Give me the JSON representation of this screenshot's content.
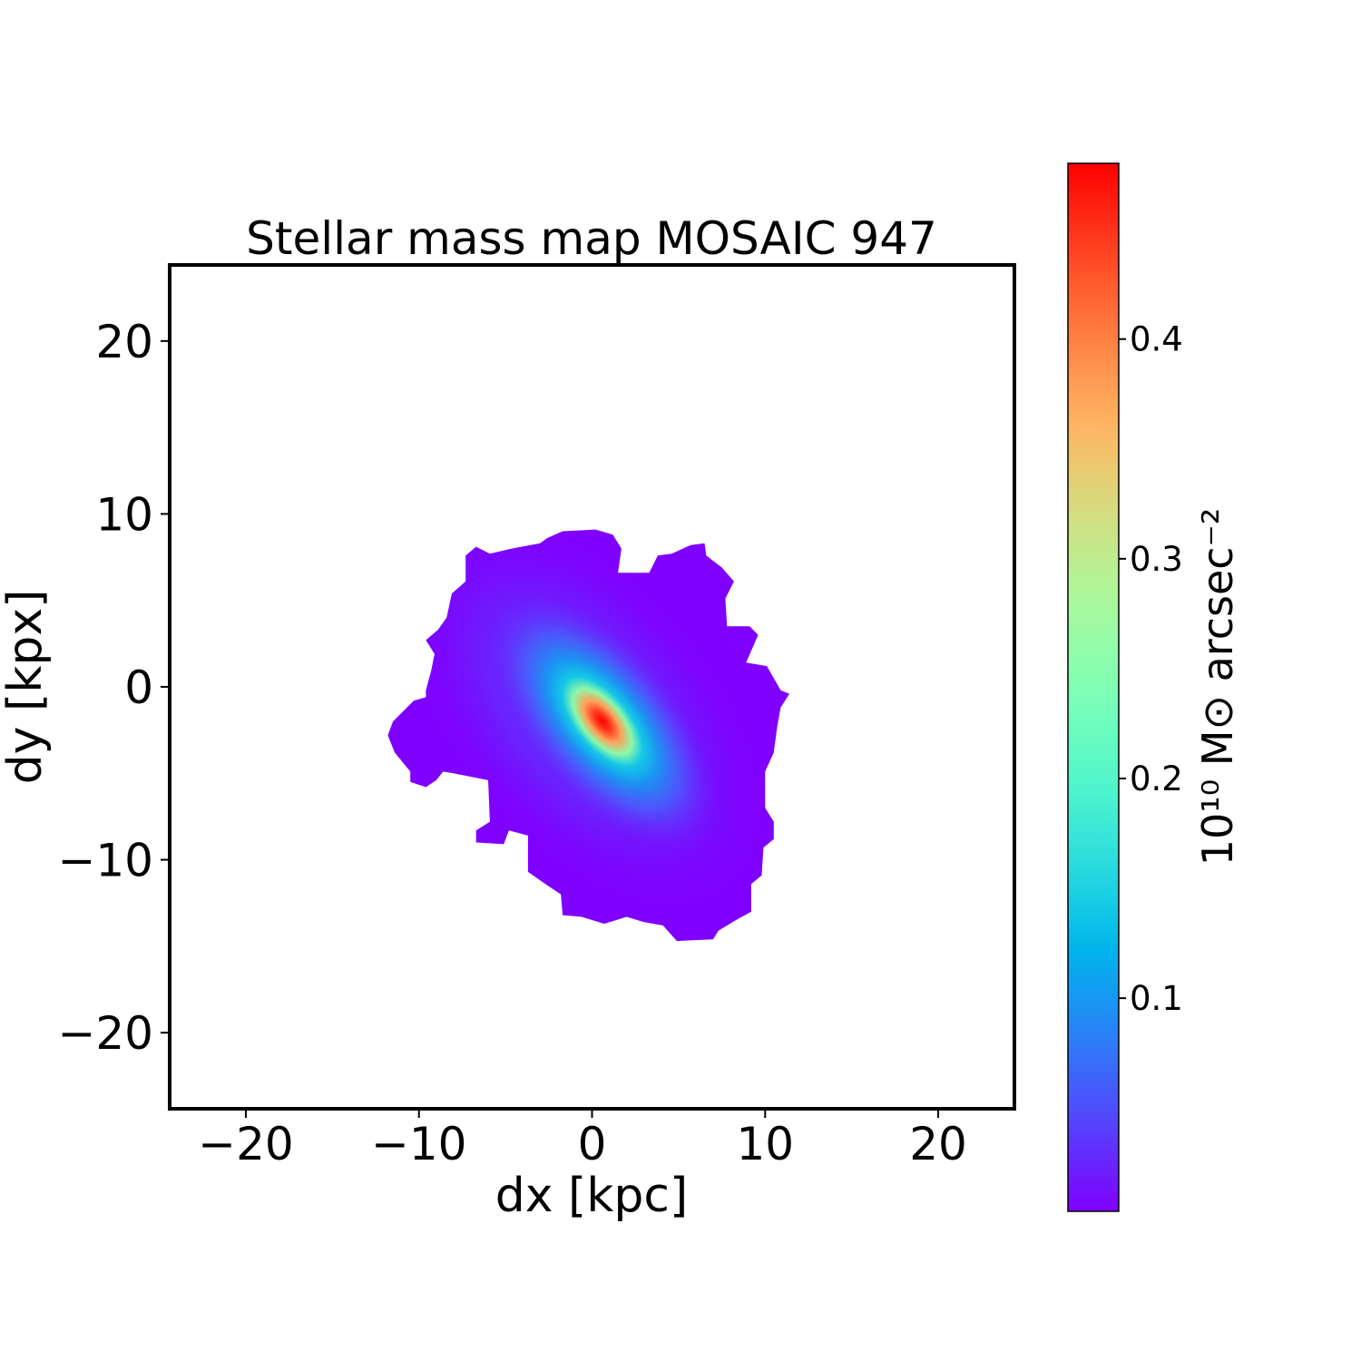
{
  "chart_data": {
    "type": "heatmap",
    "title": "Stellar mass map MOSAIC 947",
    "xlabel": "dx [kpc]",
    "ylabel": "dy [kpx]",
    "xlim": [
      -24.4,
      24.4
    ],
    "ylim": [
      -24.4,
      24.4
    ],
    "xticks": [
      -20,
      -10,
      0,
      10,
      20
    ],
    "yticks": [
      -20,
      -10,
      0,
      10,
      20
    ],
    "xtick_labels": [
      "−20",
      "−10",
      "0",
      "10",
      "20"
    ],
    "ytick_labels": [
      "−20",
      "−10",
      "0",
      "10",
      "20"
    ],
    "grid": false,
    "colormap": "rainbow",
    "colorbar": {
      "label": "10¹⁰ M⊙ arcsec⁻²",
      "label_base": "10",
      "label_exp": "10",
      "label_m": "M",
      "label_sun": "⊙",
      "label_unit": "arcsec",
      "label_unit_exp": "−2",
      "range": [
        0.003,
        0.48
      ],
      "ticks": [
        0.1,
        0.2,
        0.3,
        0.4
      ],
      "tick_labels": [
        "0.1",
        "0.2",
        "0.3",
        "0.4"
      ],
      "colors": [
        "#8000ff",
        "#1a96f2",
        "#4cf2ce",
        "#b3f396",
        "#ff964f",
        "#ff0000"
      ]
    },
    "peak": {
      "dx": 0.6,
      "dy": -2.0,
      "value": 0.47,
      "position_angle_deg": -50
    },
    "background_value": 0.01,
    "outline_kpc": [
      [
        -1.7,
        9.0
      ],
      [
        0.2,
        9.1
      ],
      [
        1.2,
        8.8
      ],
      [
        1.7,
        8.0
      ],
      [
        1.5,
        6.6
      ],
      [
        3.3,
        6.6
      ],
      [
        3.8,
        7.6
      ],
      [
        4.6,
        7.7
      ],
      [
        5.7,
        8.2
      ],
      [
        6.5,
        8.3
      ],
      [
        6.6,
        7.6
      ],
      [
        7.5,
        6.9
      ],
      [
        8.2,
        6.1
      ],
      [
        7.7,
        5.1
      ],
      [
        7.8,
        3.5
      ],
      [
        9.1,
        3.5
      ],
      [
        9.6,
        3.0
      ],
      [
        8.9,
        1.4
      ],
      [
        10.1,
        1.2
      ],
      [
        10.9,
        -0.2
      ],
      [
        11.4,
        -0.4
      ],
      [
        10.9,
        -1.2
      ],
      [
        10.7,
        -2.3
      ],
      [
        10.5,
        -3.8
      ],
      [
        10.0,
        -4.9
      ],
      [
        10.0,
        -7.0
      ],
      [
        10.5,
        -7.8
      ],
      [
        10.5,
        -8.8
      ],
      [
        9.9,
        -9.3
      ],
      [
        9.8,
        -10.9
      ],
      [
        9.2,
        -11.4
      ],
      [
        9.2,
        -13.0
      ],
      [
        8.3,
        -13.5
      ],
      [
        7.3,
        -14.1
      ],
      [
        7.0,
        -14.6
      ],
      [
        4.9,
        -14.7
      ],
      [
        4.1,
        -13.8
      ],
      [
        3.0,
        -13.6
      ],
      [
        2.0,
        -13.3
      ],
      [
        0.7,
        -13.7
      ],
      [
        -0.6,
        -13.3
      ],
      [
        -1.7,
        -13.2
      ],
      [
        -1.8,
        -12.0
      ],
      [
        -2.7,
        -11.4
      ],
      [
        -3.7,
        -10.7
      ],
      [
        -3.7,
        -8.6
      ],
      [
        -4.8,
        -8.3
      ],
      [
        -5.1,
        -9.1
      ],
      [
        -6.7,
        -9.0
      ],
      [
        -6.7,
        -8.3
      ],
      [
        -5.9,
        -7.8
      ],
      [
        -6.0,
        -5.4
      ],
      [
        -8.0,
        -5.0
      ],
      [
        -8.6,
        -4.9
      ],
      [
        -9.0,
        -5.4
      ],
      [
        -9.6,
        -5.8
      ],
      [
        -10.5,
        -5.5
      ],
      [
        -10.5,
        -4.9
      ],
      [
        -11.4,
        -3.8
      ],
      [
        -11.8,
        -2.8
      ],
      [
        -11.5,
        -2.0
      ],
      [
        -10.3,
        -0.8
      ],
      [
        -9.6,
        -0.6
      ],
      [
        -9.6,
        -0.2
      ],
      [
        -9.3,
        0.9
      ],
      [
        -9.1,
        1.9
      ],
      [
        -9.6,
        2.7
      ],
      [
        -8.9,
        3.3
      ],
      [
        -8.4,
        4.0
      ],
      [
        -8.1,
        5.4
      ],
      [
        -7.3,
        6.1
      ],
      [
        -7.3,
        7.6
      ],
      [
        -6.7,
        8.1
      ],
      [
        -5.9,
        7.7
      ],
      [
        -4.6,
        8.0
      ],
      [
        -3.0,
        8.3
      ],
      [
        -2.6,
        8.6
      ]
    ]
  }
}
